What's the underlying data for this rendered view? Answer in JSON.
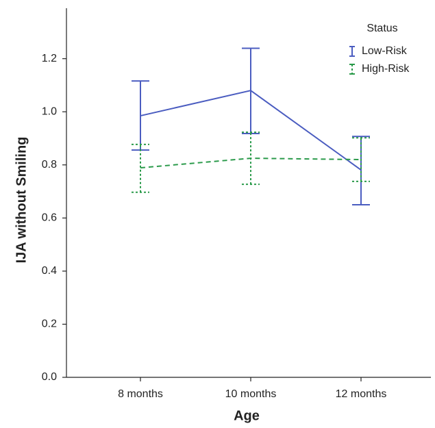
{
  "chart_data": {
    "type": "line_errorbar",
    "x_label": "Age",
    "y_label": "IJA without Smiling",
    "categories": [
      "8 months",
      "10 months",
      "12 months"
    ],
    "ylim": [
      0,
      1.39
    ],
    "yticks": [
      {
        "value": 0,
        "label": "0.0"
      },
      0.2,
      0.4,
      0.6,
      0.8,
      {
        "value": 1,
        "label": "1.0"
      },
      1.2
    ],
    "legend_title": "Status",
    "legend_position": "upper right",
    "series": [
      {
        "name": "Low-Risk",
        "color": "#4a5cc0",
        "line_style": "solid",
        "values": [
          0.985,
          1.08,
          0.781
        ],
        "lower": [
          0.856,
          0.918,
          0.65
        ],
        "upper": [
          1.116,
          1.239,
          0.907
        ]
      },
      {
        "name": "High-Risk",
        "color": "#2a9a4a",
        "line_style": "dashed",
        "values": [
          0.789,
          0.825,
          0.82
        ],
        "lower": [
          0.697,
          0.727,
          0.738
        ],
        "upper": [
          0.877,
          0.923,
          0.902
        ]
      }
    ]
  }
}
